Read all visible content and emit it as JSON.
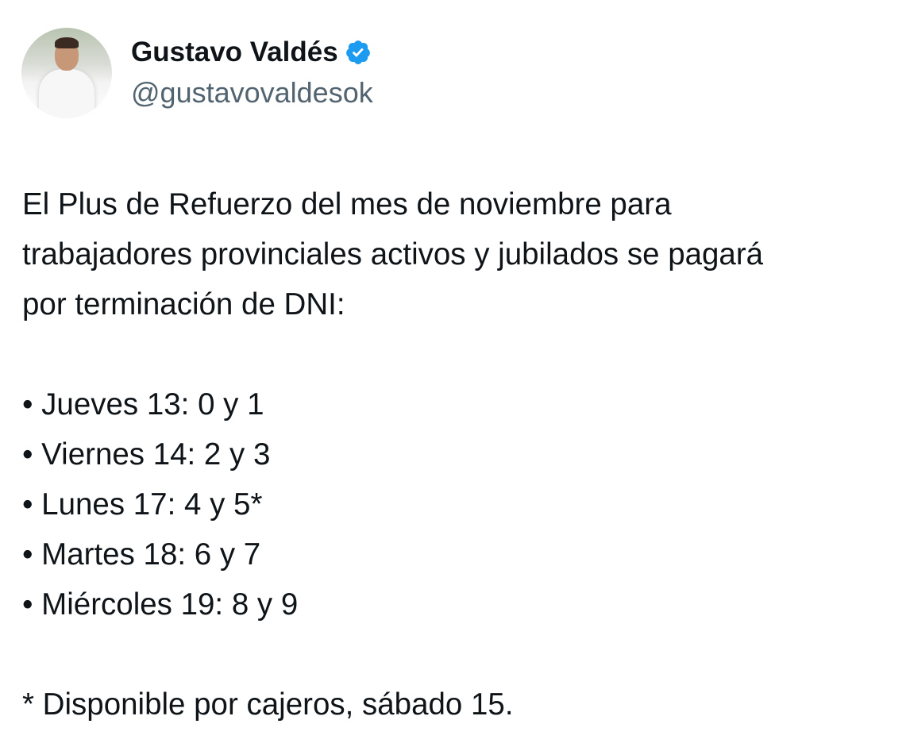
{
  "author": {
    "name": "Gustavo Valdés",
    "handle": "@gustavovaldesok",
    "verified": true,
    "badge_color": "#1d9bf0"
  },
  "tweet": {
    "intro_lines": [
      "El Plus de Refuerzo del mes de noviembre para",
      "trabajadores provinciales activos y jubilados se pagará",
      "por terminación de DNI:"
    ],
    "schedule": [
      "• Jueves 13: 0 y 1",
      "• Viernes 14: 2 y 3",
      "• Lunes 17: 4 y 5*",
      "• Martes 18: 6 y 7",
      "• Miércoles 19: 8 y 9"
    ],
    "footnote": "* Disponible por cajeros, sábado 15."
  }
}
